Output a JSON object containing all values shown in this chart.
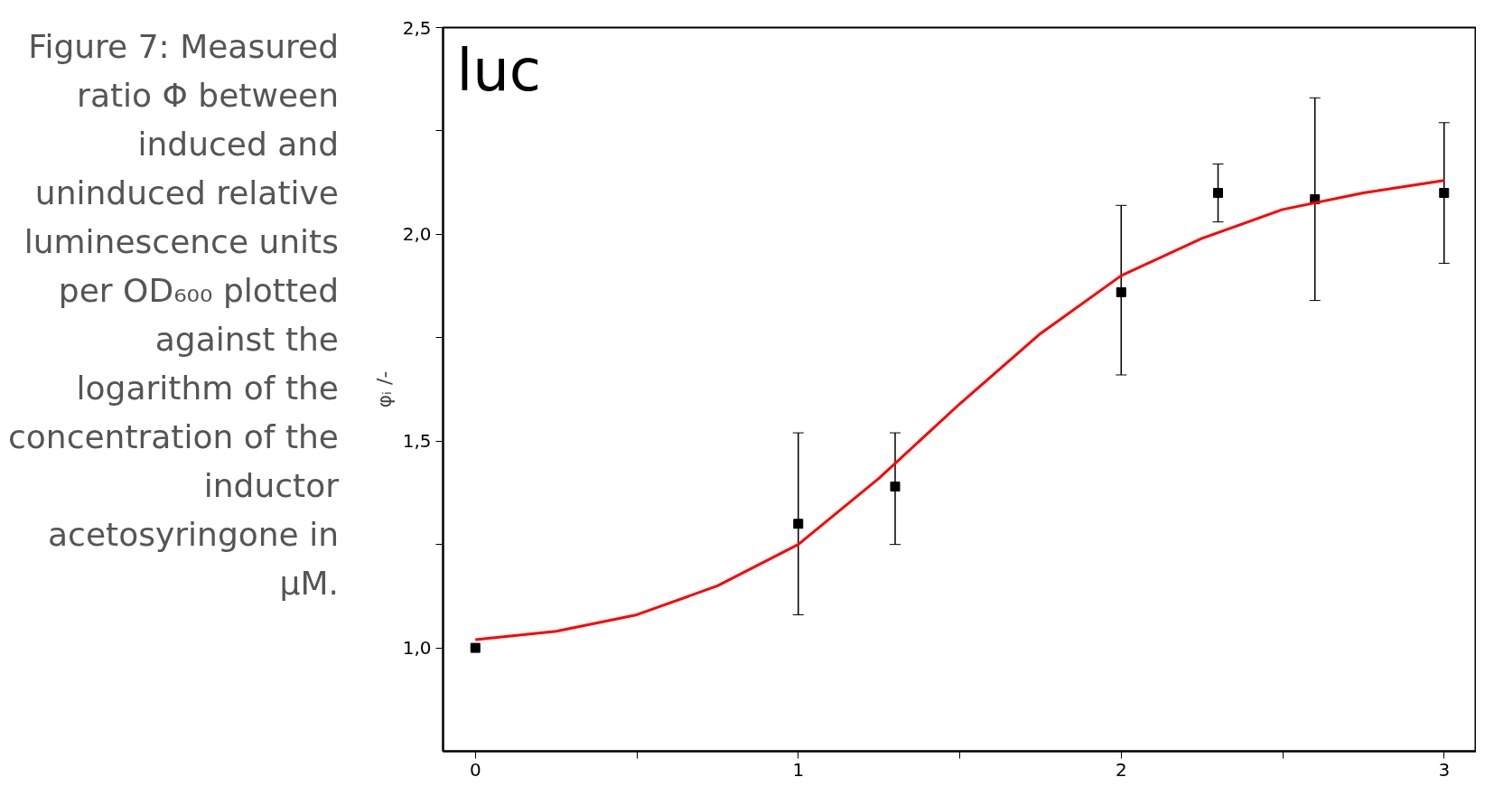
{
  "chart_data": {
    "type": "scatter",
    "annotations": [
      "luc",
      "Figure 7: Measured ratio Φ between induced and uninduced relative luminescence units per OD₆₀₀ plotted against the logarithm of the concentration of the inductor acetosyringone in µM."
    ],
    "ylabel": "φᵢ /-",
    "xlim": [
      -0.1,
      3.1
    ],
    "ylim": [
      0.75,
      2.5
    ],
    "xticks": [
      0,
      {
        "value": 0.5,
        "label": null
      },
      1,
      {
        "value": 1.5,
        "label": null
      },
      2,
      {
        "value": 2.5,
        "label": null
      },
      3
    ],
    "yticks": [
      {
        "value": 1.0,
        "label": "1,0"
      },
      {
        "value": 1.25,
        "label": null
      },
      {
        "value": 1.5,
        "label": "1,5"
      },
      {
        "value": 1.75,
        "label": null
      },
      {
        "value": 2.0,
        "label": "2,0"
      },
      {
        "value": 2.25,
        "label": null
      },
      {
        "value": 2.5,
        "label": "2,5"
      }
    ],
    "grid": false,
    "marker": "square",
    "series": [
      {
        "color": "#000000",
        "x": [
          0,
          1,
          1.3,
          2,
          2.3,
          2.6,
          3
        ],
        "values": [
          1.0,
          1.3,
          1.39,
          1.86,
          2.1,
          2.085,
          2.1
        ],
        "errors": [
          null,
          [
            1.08,
            1.52
          ],
          [
            1.25,
            1.52
          ],
          [
            1.66,
            2.07
          ],
          [
            2.03,
            2.17
          ],
          [
            1.84,
            2.33
          ],
          [
            1.93,
            2.27
          ]
        ]
      },
      {
        "type": "line",
        "color": "#ff0000",
        "marker": "none",
        "x": [
          0,
          0.25,
          0.5,
          0.75,
          1.0,
          1.25,
          1.5,
          1.75,
          2.0,
          2.25,
          2.5,
          2.75,
          3.0
        ],
        "values": [
          1.02,
          1.04,
          1.08,
          1.15,
          1.25,
          1.41,
          1.59,
          1.76,
          1.9,
          1.99,
          2.06,
          2.1,
          2.13
        ]
      }
    ]
  }
}
